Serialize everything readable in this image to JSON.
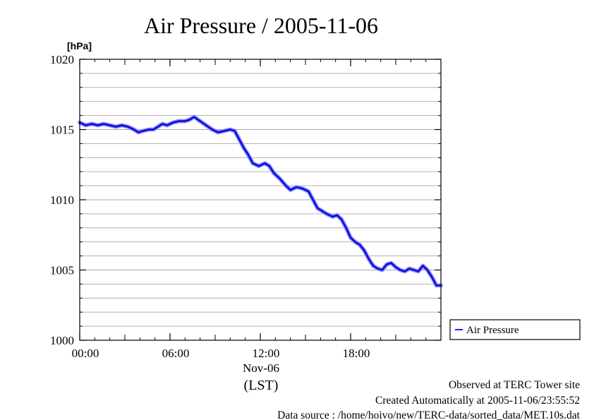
{
  "chart_data": {
    "type": "line",
    "title": "Air Pressure / 2005-11-06",
    "ylabel": "[hPa]",
    "xlabel": "(LST)",
    "x_date_label": "Nov-06",
    "ylim": [
      1000,
      1020
    ],
    "xlim": [
      0,
      24
    ],
    "x_ticks": [
      {
        "value": 0,
        "label": "00:00"
      },
      {
        "value": 6,
        "label": "06:00"
      },
      {
        "value": 12,
        "label": "12:00"
      },
      {
        "value": 18,
        "label": "18:00"
      }
    ],
    "y_ticks": [
      {
        "value": 1000,
        "label": "1000"
      },
      {
        "value": 1005,
        "label": "1005"
      },
      {
        "value": 1010,
        "label": "1010"
      },
      {
        "value": 1015,
        "label": "1015"
      },
      {
        "value": 1020,
        "label": "1020"
      }
    ],
    "y_minor_step": 1,
    "grid": true,
    "legend_position": "right",
    "series": [
      {
        "name": "Air Pressure",
        "color": "#2020ff",
        "x": [
          0.0,
          0.4,
          0.8,
          1.2,
          1.6,
          2.0,
          2.4,
          2.8,
          3.2,
          3.6,
          3.9,
          4.2,
          4.6,
          4.9,
          5.2,
          5.5,
          5.8,
          6.2,
          6.6,
          7.0,
          7.3,
          7.6,
          8.0,
          8.4,
          8.8,
          9.2,
          9.6,
          10.0,
          10.3,
          10.6,
          10.9,
          11.2,
          11.5,
          11.9,
          12.3,
          12.6,
          12.9,
          13.3,
          13.7,
          14.0,
          14.4,
          14.8,
          15.2,
          15.5,
          15.8,
          16.1,
          16.4,
          16.8,
          17.1,
          17.4,
          17.7,
          18.0,
          18.3,
          18.6,
          18.9,
          19.2,
          19.5,
          19.8,
          20.1,
          20.4,
          20.7,
          21.0,
          21.3,
          21.6,
          21.9,
          22.2,
          22.5,
          22.8,
          23.1,
          23.4,
          23.7,
          24.0
        ],
        "values": [
          1015.5,
          1015.3,
          1015.4,
          1015.3,
          1015.4,
          1015.3,
          1015.2,
          1015.3,
          1015.2,
          1015.0,
          1014.8,
          1014.9,
          1015.0,
          1015.0,
          1015.2,
          1015.4,
          1015.3,
          1015.5,
          1015.6,
          1015.6,
          1015.7,
          1015.9,
          1015.6,
          1015.3,
          1015.0,
          1014.8,
          1014.9,
          1015.0,
          1014.9,
          1014.3,
          1013.7,
          1013.2,
          1012.6,
          1012.4,
          1012.6,
          1012.4,
          1011.9,
          1011.5,
          1011.0,
          1010.7,
          1010.9,
          1010.8,
          1010.6,
          1010.0,
          1009.4,
          1009.2,
          1009.0,
          1008.8,
          1008.9,
          1008.6,
          1008.0,
          1007.3,
          1007.0,
          1006.8,
          1006.4,
          1005.8,
          1005.3,
          1005.1,
          1005.0,
          1005.4,
          1005.5,
          1005.2,
          1005.0,
          1004.9,
          1005.1,
          1005.0,
          1004.9,
          1005.3,
          1005.0,
          1004.5,
          1003.9,
          1003.9
        ]
      }
    ]
  },
  "footer": {
    "line1": "Observed at TERC Tower site",
    "line2": "Created Automatically at 2005-11-06/23:55:52",
    "line3": "Data source : /home/hoivo/new/TERC-data/sorted_data/MET.10s.dat"
  }
}
